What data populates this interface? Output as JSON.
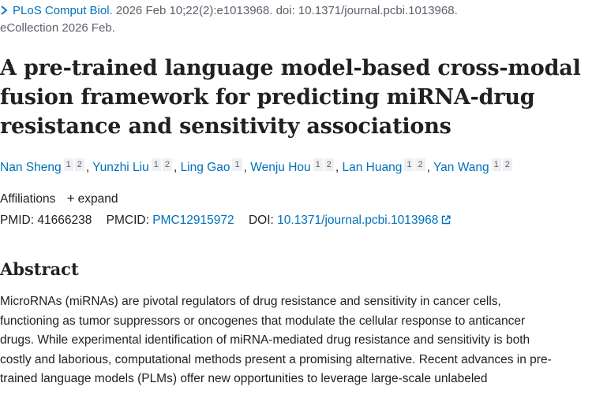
{
  "citation": {
    "journal": "PLoS Comput Biol.",
    "details": " 2026 Feb 10;22(2):e1013968. doi: 10.1371/journal.pcbi.1013968.",
    "ecollection": "eCollection 2026 Feb."
  },
  "title_lines": [
    "A pre-trained language model-based cross-modal",
    "fusion framework for predicting miRNA-drug",
    "resistance and sensitivity associations"
  ],
  "authors": [
    {
      "name": "Nan Sheng",
      "aff1": "1",
      "aff2": "2",
      "sep": ","
    },
    {
      "name": "Yunzhi Liu",
      "aff1": "1",
      "aff2": "2",
      "sep": ","
    },
    {
      "name": "Ling Gao",
      "aff1": "1",
      "sep": ","
    },
    {
      "name": "Wenju Hou",
      "aff1": "1",
      "aff2": "2",
      "sep": ","
    },
    {
      "name": "Lan Huang",
      "aff1": "1",
      "aff2": "2",
      "sep": ","
    },
    {
      "name": "Yan Wang",
      "aff1": "1",
      "aff2": "2"
    }
  ],
  "affiliations": {
    "label": "Affiliations",
    "expand_label": "expand",
    "expand_icon": "plus-icon"
  },
  "ids": {
    "pmid_label": "PMID:",
    "pmid": "41666238",
    "pmcid_label": "PMCID:",
    "pmcid": "PMC12915972",
    "doi_label": "DOI:",
    "doi": "10.1371/journal.pcbi.1013968"
  },
  "abstract": {
    "heading": "Abstract",
    "lines": [
      "MicroRNAs (miRNAs) are pivotal regulators of drug resistance and sensitivity in cancer cells,",
      "functioning as tumor suppressors or oncogenes that modulate the cellular response to anticancer",
      "drugs. While experimental identification of miRNA-mediated drug resistance and sensitivity is both",
      "costly and laborious, computational methods present a promising alternative. Recent advances in pre-",
      "trained language models (PLMs) offer new opportunities to leverage large-scale unlabeled"
    ]
  },
  "colors": {
    "link": "#0071bc",
    "text": "#212121",
    "muted": "#5b616b"
  }
}
